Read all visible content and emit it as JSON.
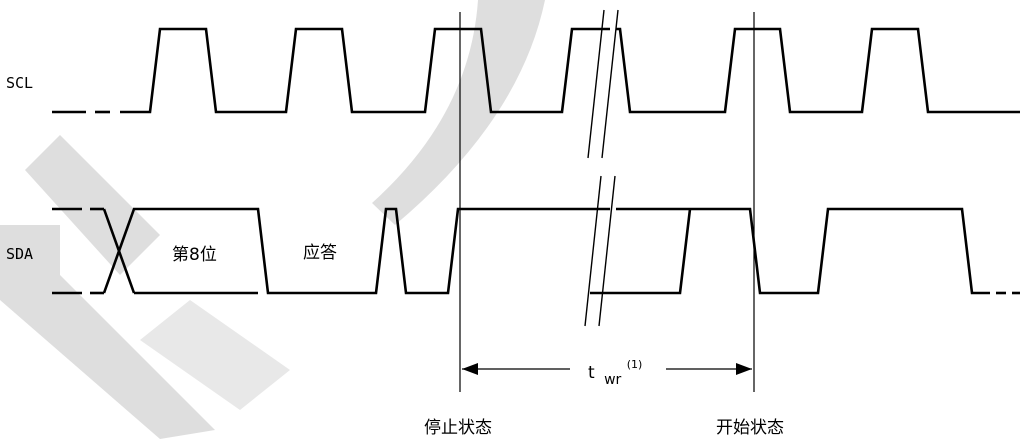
{
  "signals": {
    "scl_label": "SCL",
    "sda_label": "SDA"
  },
  "sda_annotations": {
    "bit8_label": "第8位",
    "ack_label": "应答"
  },
  "timing": {
    "twr_main": "t",
    "twr_sub": "wr",
    "twr_note": "(1)"
  },
  "markers": {
    "stop_label": "停止状态",
    "start_label": "开始状态"
  },
  "colors": {
    "trace": "#000000",
    "watermark": "#d8d8d8"
  }
}
